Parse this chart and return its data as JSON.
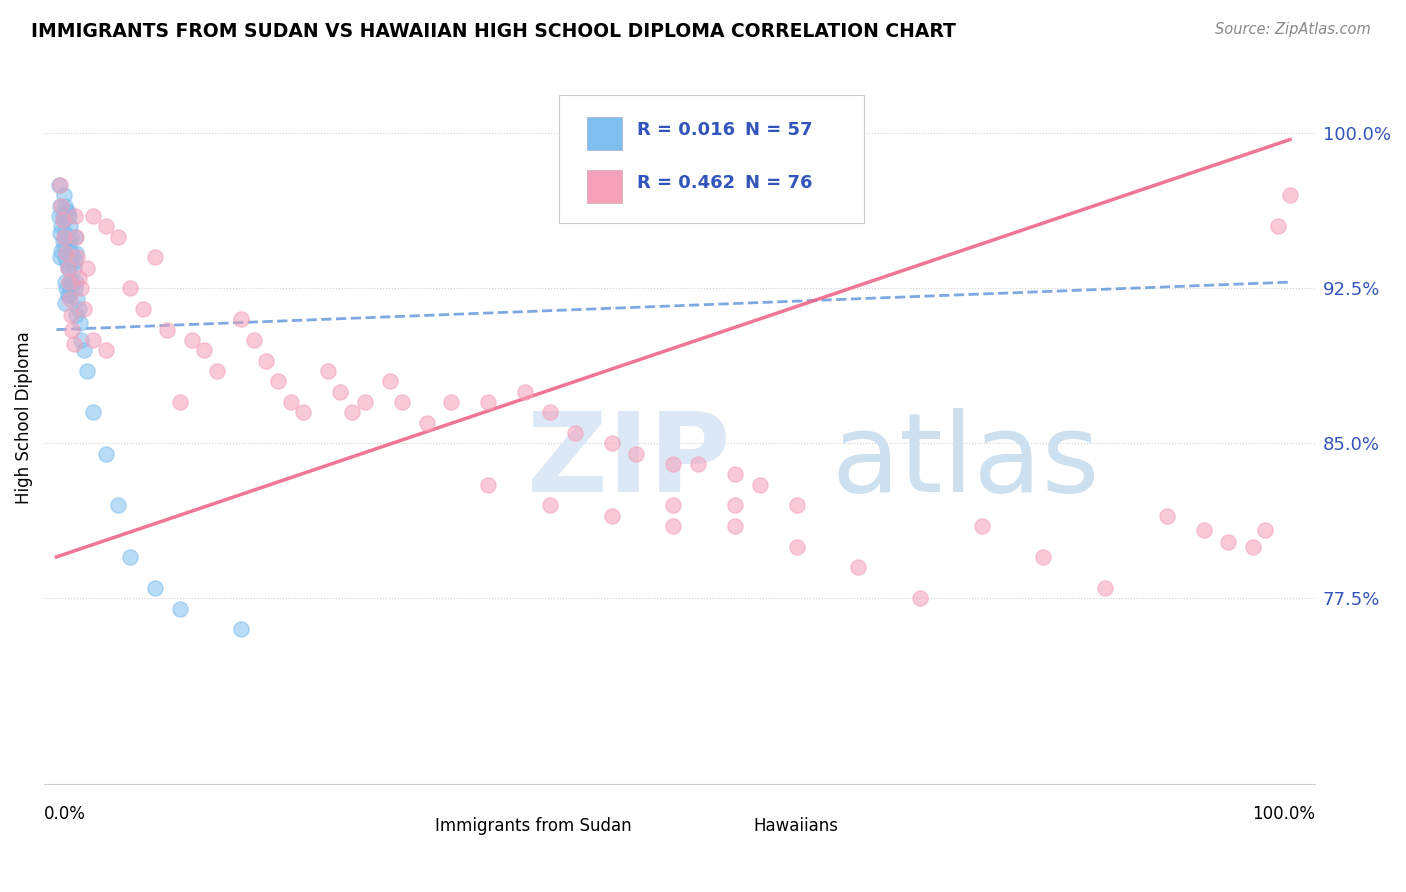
{
  "title": "IMMIGRANTS FROM SUDAN VS HAWAIIAN HIGH SCHOOL DIPLOMA CORRELATION CHART",
  "source": "Source: ZipAtlas.com",
  "ylabel": "High School Diploma",
  "yticks": [
    0.775,
    0.85,
    0.925,
    1.0
  ],
  "ytick_labels": [
    "77.5%",
    "85.0%",
    "92.5%",
    "100.0%"
  ],
  "xlim": [
    0.0,
    1.0
  ],
  "ylim": [
    0.685,
    1.04
  ],
  "legend_r1": "R = 0.016",
  "legend_n1": "N = 57",
  "legend_r2": "R = 0.462",
  "legend_n2": "N = 76",
  "color_blue": "#7fbfef",
  "color_pink": "#f4a0b8",
  "color_blue_text": "#3355bb",
  "color_pink_text": "#cc3366",
  "color_blue_line": "#6699dd",
  "color_pink_line": "#ee6688",
  "blue_line_x0": 0.0,
  "blue_line_y0": 0.905,
  "blue_line_x1": 1.0,
  "blue_line_y1": 0.928,
  "pink_line_x0": 0.0,
  "pink_line_y0": 0.795,
  "pink_line_x1": 1.0,
  "pink_line_y1": 0.997,
  "blue_x": [
    0.002,
    0.002,
    0.003,
    0.003,
    0.003,
    0.004,
    0.004,
    0.005,
    0.005,
    0.006,
    0.006,
    0.006,
    0.007,
    0.007,
    0.007,
    0.007,
    0.007,
    0.008,
    0.008,
    0.008,
    0.008,
    0.009,
    0.009,
    0.009,
    0.009,
    0.01,
    0.01,
    0.01,
    0.01,
    0.011,
    0.011,
    0.011,
    0.012,
    0.012,
    0.012,
    0.013,
    0.013,
    0.014,
    0.015,
    0.015,
    0.015,
    0.016,
    0.016,
    0.016,
    0.017,
    0.018,
    0.019,
    0.02,
    0.022,
    0.025,
    0.03,
    0.04,
    0.05,
    0.06,
    0.08,
    0.1,
    0.15
  ],
  "blue_y": [
    0.975,
    0.96,
    0.965,
    0.952,
    0.94,
    0.955,
    0.943,
    0.96,
    0.948,
    0.97,
    0.958,
    0.945,
    0.965,
    0.952,
    0.94,
    0.928,
    0.918,
    0.963,
    0.95,
    0.938,
    0.925,
    0.962,
    0.948,
    0.935,
    0.922,
    0.96,
    0.948,
    0.935,
    0.922,
    0.955,
    0.942,
    0.928,
    0.95,
    0.938,
    0.925,
    0.942,
    0.928,
    0.935,
    0.95,
    0.938,
    0.925,
    0.942,
    0.928,
    0.912,
    0.92,
    0.915,
    0.908,
    0.9,
    0.895,
    0.885,
    0.865,
    0.845,
    0.82,
    0.795,
    0.78,
    0.77,
    0.76
  ],
  "pink_x": [
    0.003,
    0.004,
    0.005,
    0.006,
    0.008,
    0.009,
    0.01,
    0.011,
    0.012,
    0.013,
    0.014,
    0.015,
    0.016,
    0.017,
    0.018,
    0.02,
    0.022,
    0.025,
    0.03,
    0.03,
    0.04,
    0.04,
    0.05,
    0.06,
    0.07,
    0.08,
    0.09,
    0.1,
    0.11,
    0.12,
    0.13,
    0.15,
    0.16,
    0.17,
    0.18,
    0.19,
    0.2,
    0.22,
    0.23,
    0.24,
    0.25,
    0.27,
    0.28,
    0.3,
    0.32,
    0.35,
    0.38,
    0.4,
    0.42,
    0.45,
    0.47,
    0.5,
    0.52,
    0.55,
    0.57,
    0.6,
    0.4,
    0.45,
    0.5,
    0.55,
    0.6,
    0.65,
    0.7,
    0.75,
    0.8,
    0.85,
    0.9,
    0.93,
    0.95,
    0.97,
    0.98,
    0.99,
    1.0,
    0.5,
    0.55,
    0.35
  ],
  "pink_y": [
    0.975,
    0.965,
    0.958,
    0.95,
    0.942,
    0.935,
    0.928,
    0.92,
    0.912,
    0.905,
    0.898,
    0.96,
    0.95,
    0.94,
    0.93,
    0.925,
    0.915,
    0.935,
    0.9,
    0.96,
    0.955,
    0.895,
    0.95,
    0.925,
    0.915,
    0.94,
    0.905,
    0.87,
    0.9,
    0.895,
    0.885,
    0.91,
    0.9,
    0.89,
    0.88,
    0.87,
    0.865,
    0.885,
    0.875,
    0.865,
    0.87,
    0.88,
    0.87,
    0.86,
    0.87,
    0.87,
    0.875,
    0.865,
    0.855,
    0.85,
    0.845,
    0.84,
    0.84,
    0.835,
    0.83,
    0.82,
    0.82,
    0.815,
    0.81,
    0.81,
    0.8,
    0.79,
    0.775,
    0.81,
    0.795,
    0.78,
    0.815,
    0.808,
    0.802,
    0.8,
    0.808,
    0.955,
    0.97,
    0.82,
    0.82,
    0.83
  ]
}
